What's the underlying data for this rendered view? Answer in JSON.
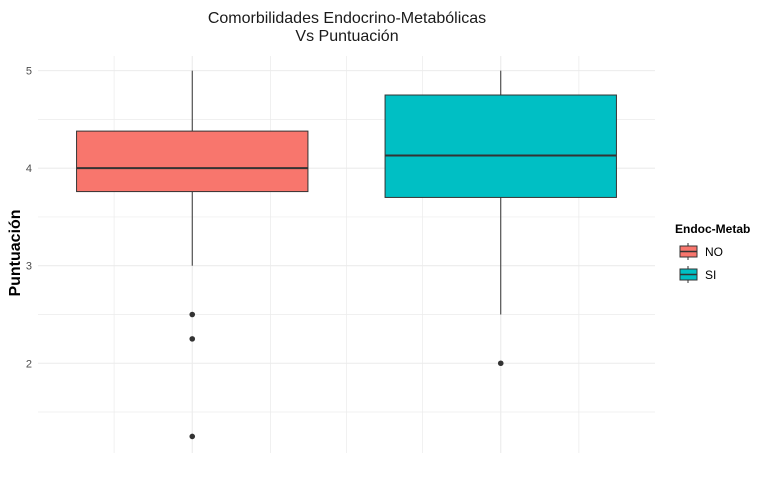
{
  "chart_data": {
    "type": "boxplot",
    "title_lines": [
      "Comorbilidades Endocrino-Metabólicas",
      "Vs Puntuación"
    ],
    "xlabel": "",
    "ylabel": "Puntuación",
    "ylim": [
      1.08,
      5.15
    ],
    "yticks": [
      2,
      3,
      4,
      5
    ],
    "grid": true,
    "legend": {
      "title": "Endoc-Metab",
      "position": "right",
      "entries": [
        {
          "label": "NO",
          "color": "#F8766D"
        },
        {
          "label": "SI",
          "color": "#00BFC4"
        }
      ]
    },
    "series": [
      {
        "name": "NO",
        "color": "#F8766D",
        "whisker_low": 3.0,
        "q1": 3.76,
        "median": 4.0,
        "q3": 4.38,
        "whisker_high": 5.0,
        "outliers": [
          2.5,
          2.25,
          1.25
        ]
      },
      {
        "name": "SI",
        "color": "#00BFC4",
        "whisker_low": 2.5,
        "q1": 3.7,
        "median": 4.13,
        "q3": 4.75,
        "whisker_high": 5.0,
        "outliers": [
          2.0
        ]
      }
    ]
  }
}
